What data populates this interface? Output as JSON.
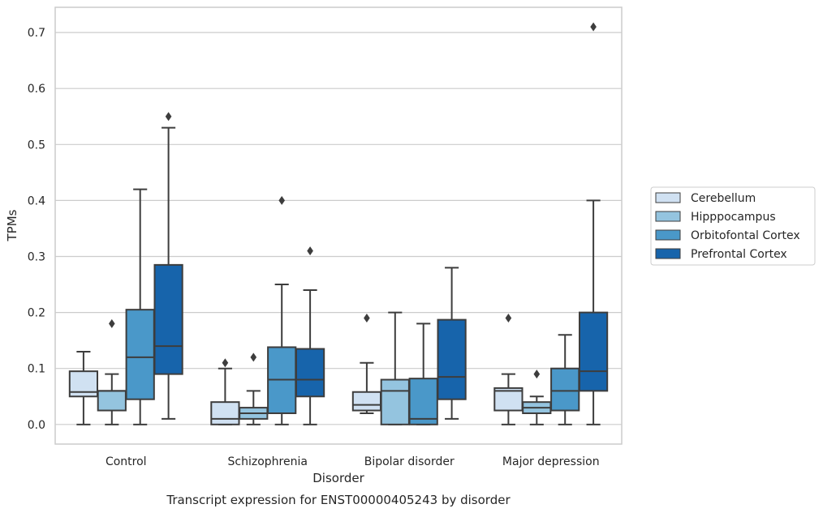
{
  "chart_data": {
    "type": "box",
    "title": "",
    "caption": "Transcript expression for ENST00000405243 by disorder",
    "xlabel": "Disorder",
    "ylabel": "TPMs",
    "ylim": [
      -0.035,
      0.745
    ],
    "yticks": [
      0.0,
      0.1,
      0.2,
      0.3,
      0.4,
      0.5,
      0.6,
      0.7
    ],
    "ytick_labels": [
      "0.0",
      "0.1",
      "0.2",
      "0.3",
      "0.4",
      "0.5",
      "0.6",
      "0.7"
    ],
    "grid": "horizontal",
    "legend_position": "right",
    "categories": [
      "Control",
      "Schizophrenia",
      "Bipolar disorder",
      "Major depression"
    ],
    "series": [
      {
        "name": "Cerebellum",
        "color": "#d0e1f2",
        "boxes": [
          {
            "whislo": 0.0,
            "q1": 0.05,
            "med": 0.058,
            "q3": 0.095,
            "whishi": 0.13,
            "fliers": []
          },
          {
            "whislo": 0.0,
            "q1": 0.0,
            "med": 0.01,
            "q3": 0.04,
            "whishi": 0.1,
            "fliers": [
              0.11
            ]
          },
          {
            "whislo": 0.02,
            "q1": 0.025,
            "med": 0.035,
            "q3": 0.058,
            "whishi": 0.11,
            "fliers": [
              0.19
            ]
          },
          {
            "whislo": 0.0,
            "q1": 0.025,
            "med": 0.06,
            "q3": 0.065,
            "whishi": 0.09,
            "fliers": [
              0.19
            ]
          }
        ]
      },
      {
        "name": "Hipppocampus",
        "color": "#94c4df",
        "boxes": [
          {
            "whislo": 0.0,
            "q1": 0.025,
            "med": 0.06,
            "q3": 0.06,
            "whishi": 0.09,
            "fliers": [
              0.18
            ]
          },
          {
            "whislo": 0.0,
            "q1": 0.01,
            "med": 0.02,
            "q3": 0.03,
            "whishi": 0.06,
            "fliers": [
              0.12
            ]
          },
          {
            "whislo": 0.0,
            "q1": 0.0,
            "med": 0.06,
            "q3": 0.08,
            "whishi": 0.2,
            "fliers": []
          },
          {
            "whislo": 0.0,
            "q1": 0.02,
            "med": 0.03,
            "q3": 0.04,
            "whishi": 0.05,
            "fliers": [
              0.09
            ]
          }
        ]
      },
      {
        "name": "Orbitofontal Cortex",
        "color": "#4a98c9",
        "boxes": [
          {
            "whislo": 0.0,
            "q1": 0.045,
            "med": 0.12,
            "q3": 0.205,
            "whishi": 0.42,
            "fliers": []
          },
          {
            "whislo": 0.0,
            "q1": 0.02,
            "med": 0.08,
            "q3": 0.138,
            "whishi": 0.25,
            "fliers": [
              0.4
            ]
          },
          {
            "whislo": 0.0,
            "q1": 0.0,
            "med": 0.01,
            "q3": 0.082,
            "whishi": 0.18,
            "fliers": []
          },
          {
            "whislo": 0.0,
            "q1": 0.025,
            "med": 0.06,
            "q3": 0.1,
            "whishi": 0.16,
            "fliers": []
          }
        ]
      },
      {
        "name": "Prefrontal Cortex",
        "color": "#1764ab",
        "boxes": [
          {
            "whislo": 0.01,
            "q1": 0.09,
            "med": 0.14,
            "q3": 0.285,
            "whishi": 0.53,
            "fliers": [
              0.55
            ]
          },
          {
            "whislo": 0.0,
            "q1": 0.05,
            "med": 0.08,
            "q3": 0.135,
            "whishi": 0.24,
            "fliers": [
              0.31
            ]
          },
          {
            "whislo": 0.01,
            "q1": 0.045,
            "med": 0.085,
            "q3": 0.187,
            "whishi": 0.28,
            "fliers": []
          },
          {
            "whislo": 0.0,
            "q1": 0.06,
            "med": 0.095,
            "q3": 0.2,
            "whishi": 0.4,
            "fliers": [
              0.71
            ]
          }
        ]
      }
    ]
  }
}
